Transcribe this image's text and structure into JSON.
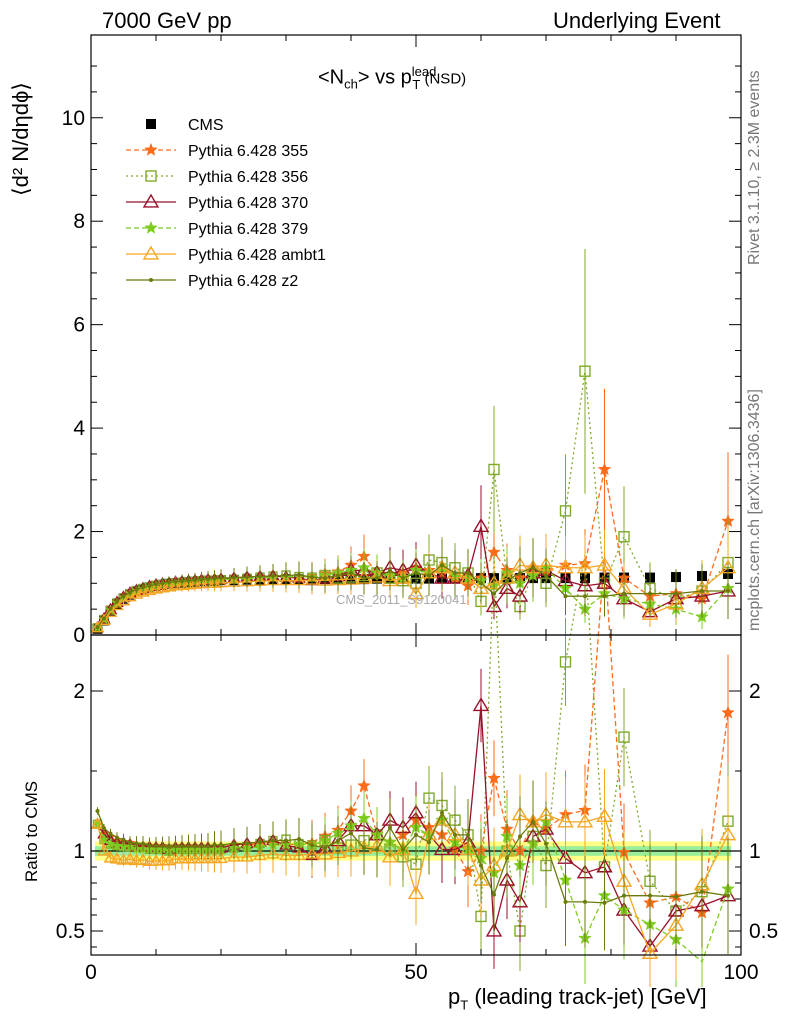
{
  "header": {
    "left": "7000 GeV pp",
    "right": "Underlying Event"
  },
  "side_labels": {
    "rivet": "Rivet 3.1.10, ≥ 2.3M events",
    "mcplots": "mcplots.cern.ch [arXiv:1306.3436]"
  },
  "watermark": "CMS_2011_S9120041",
  "plot_title": {
    "main": "<N",
    "sub1": "ch",
    "mid": "> vs p",
    "sup": "lead",
    "sub2": "T",
    "tail": " (NSD)"
  },
  "ylabel_main": "⟨d² N/dηdϕ⟩",
  "ylabel_ratio": "Ratio to CMS",
  "xlabel": {
    "p": "p",
    "sub": "T",
    "rest": " (leading track-jet) [GeV]"
  },
  "chart_data": {
    "type": "line",
    "xlabel": "pT (leading track-jet) [GeV]",
    "ylabel": "⟨d² N/dηdϕ⟩",
    "xlim": [
      0,
      100
    ],
    "ylim": [
      0,
      11.6
    ],
    "ratio_ylim": [
      0.35,
      2.35
    ],
    "x_ticks": [
      0,
      50,
      100
    ],
    "y_ticks": [
      0,
      2,
      4,
      6,
      8,
      10
    ],
    "ratio_ticks": [
      0.5,
      1,
      2
    ],
    "x": [
      1,
      2,
      3,
      4,
      5,
      6,
      7,
      8,
      9,
      10,
      11,
      12,
      13,
      14,
      15,
      16,
      17,
      18,
      19,
      20,
      22,
      24,
      26,
      28,
      30,
      32,
      34,
      36,
      38,
      40,
      42,
      44,
      46,
      48,
      50,
      52,
      54,
      56,
      58,
      60,
      62,
      64,
      66,
      68,
      70,
      73,
      76,
      79,
      82,
      86,
      90,
      94,
      98
    ],
    "series": [
      {
        "name": "CMS",
        "color": "#000000",
        "marker": "square",
        "values": [
          0.12,
          0.28,
          0.46,
          0.6,
          0.7,
          0.78,
          0.84,
          0.88,
          0.92,
          0.95,
          0.97,
          0.99,
          1.0,
          1.01,
          1.02,
          1.03,
          1.04,
          1.05,
          1.05,
          1.06,
          1.06,
          1.07,
          1.07,
          1.07,
          1.08,
          1.08,
          1.08,
          1.08,
          1.08,
          1.08,
          1.08,
          1.09,
          1.09,
          1.09,
          1.09,
          1.09,
          1.09,
          1.09,
          1.09,
          1.1,
          1.1,
          1.1,
          1.1,
          1.1,
          1.1,
          1.1,
          1.1,
          1.11,
          1.11,
          1.11,
          1.12,
          1.14,
          1.18
        ]
      },
      {
        "name": "Pythia 6.428 355",
        "color": "#ff6b1a",
        "marker": "star",
        "dash": "5,3",
        "values": [
          0.14,
          0.31,
          0.5,
          0.64,
          0.74,
          0.82,
          0.87,
          0.91,
          0.95,
          0.98,
          1.0,
          1.01,
          1.03,
          1.04,
          1.05,
          1.06,
          1.07,
          1.08,
          1.08,
          1.09,
          1.1,
          1.11,
          1.12,
          1.13,
          1.13,
          1.12,
          1.14,
          1.18,
          1.22,
          1.35,
          1.52,
          1.2,
          1.15,
          1.2,
          1.3,
          1.25,
          1.2,
          1.1,
          0.95,
          1.1,
          1.6,
          1.25,
          1.1,
          1.3,
          1.25,
          1.35,
          1.38,
          3.2,
          1.1,
          0.75,
          0.8,
          0.7,
          2.2
        ]
      },
      {
        "name": "Pythia 6.428 356",
        "color": "#80aa2a",
        "marker": "osquare",
        "dash": "2,3",
        "values": [
          0.14,
          0.3,
          0.48,
          0.62,
          0.72,
          0.8,
          0.86,
          0.9,
          0.93,
          0.96,
          0.98,
          0.99,
          1.01,
          1.02,
          1.03,
          1.04,
          1.05,
          1.06,
          1.06,
          1.07,
          1.08,
          1.1,
          1.12,
          1.14,
          1.16,
          1.13,
          1.12,
          1.15,
          1.1,
          1.12,
          1.15,
          1.2,
          1.1,
          1.05,
          1.0,
          1.45,
          1.4,
          1.3,
          1.2,
          0.65,
          3.2,
          1.1,
          0.55,
          1.2,
          1.0,
          2.4,
          5.1,
          1.0,
          1.9,
          0.9,
          0.7,
          0.85,
          1.4
        ]
      },
      {
        "name": "Pythia 6.428 370",
        "color": "#99102a",
        "marker": "otriangle",
        "values": [
          0.14,
          0.31,
          0.49,
          0.63,
          0.73,
          0.81,
          0.86,
          0.9,
          0.94,
          0.97,
          0.99,
          1.0,
          1.02,
          1.03,
          1.04,
          1.05,
          1.06,
          1.07,
          1.07,
          1.08,
          1.1,
          1.12,
          1.13,
          1.14,
          1.12,
          1.1,
          1.05,
          1.1,
          1.15,
          1.25,
          1.25,
          1.2,
          1.3,
          1.25,
          1.35,
          1.2,
          1.1,
          1.1,
          1.15,
          2.1,
          0.55,
          0.9,
          0.75,
          1.2,
          1.25,
          1.05,
          0.95,
          1.0,
          0.7,
          0.45,
          0.7,
          0.75,
          0.85
        ]
      },
      {
        "name": "Pythia 6.428 379",
        "color": "#7fcc20",
        "marker": "star",
        "dash": "5,3",
        "values": [
          0.14,
          0.3,
          0.48,
          0.62,
          0.72,
          0.8,
          0.85,
          0.89,
          0.93,
          0.96,
          0.98,
          0.99,
          1.01,
          1.02,
          1.03,
          1.04,
          1.05,
          1.06,
          1.06,
          1.07,
          1.08,
          1.09,
          1.1,
          1.11,
          1.12,
          1.13,
          1.12,
          1.15,
          1.2,
          1.25,
          1.3,
          1.2,
          1.15,
          1.1,
          1.25,
          1.2,
          1.3,
          1.15,
          1.1,
          1.05,
          0.95,
          1.2,
          1.0,
          1.15,
          1.3,
          0.9,
          0.5,
          0.8,
          0.7,
          0.6,
          0.5,
          0.35,
          0.9
        ]
      },
      {
        "name": "Pythia 6.428 ambt1",
        "color": "#f5a623",
        "marker": "otriangle",
        "values": [
          0.14,
          0.28,
          0.44,
          0.57,
          0.66,
          0.74,
          0.79,
          0.83,
          0.86,
          0.89,
          0.91,
          0.93,
          0.95,
          0.96,
          0.97,
          0.98,
          0.99,
          1.0,
          1.0,
          1.01,
          1.02,
          1.03,
          1.04,
          1.05,
          1.05,
          1.05,
          1.06,
          1.06,
          1.07,
          1.08,
          1.1,
          1.12,
          1.05,
          1.1,
          0.8,
          1.2,
          1.3,
          1.2,
          1.1,
          0.9,
          1.0,
          1.1,
          1.35,
          1.3,
          1.35,
          1.3,
          1.3,
          1.35,
          0.9,
          0.4,
          0.6,
          0.9,
          1.3
        ]
      },
      {
        "name": "Pythia 6.428 z2",
        "color": "#6b7a0a",
        "marker": "dot",
        "values": [
          0.15,
          0.32,
          0.51,
          0.65,
          0.75,
          0.82,
          0.88,
          0.92,
          0.95,
          0.98,
          1.0,
          1.02,
          1.03,
          1.04,
          1.05,
          1.06,
          1.07,
          1.08,
          1.09,
          1.1,
          1.11,
          1.12,
          1.13,
          1.14,
          1.15,
          1.16,
          1.12,
          1.1,
          1.15,
          1.2,
          1.1,
          1.1,
          1.25,
          1.1,
          1.2,
          1.15,
          1.35,
          1.2,
          1.2,
          1.0,
          0.8,
          1.05,
          1.2,
          1.3,
          1.15,
          0.75,
          0.75,
          0.75,
          0.8,
          0.8,
          0.8,
          0.85,
          0.85
        ]
      }
    ]
  }
}
